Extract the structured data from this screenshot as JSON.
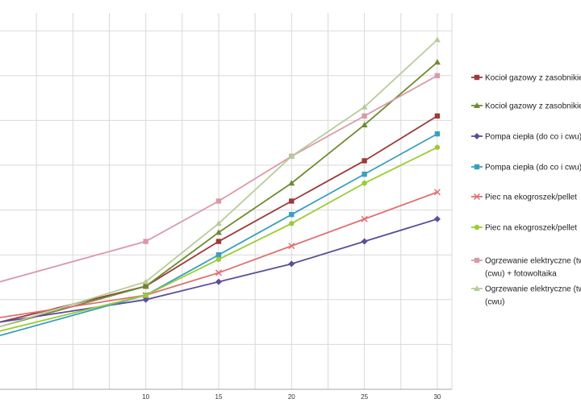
{
  "chart_data": {
    "type": "line",
    "title": "",
    "xlabel": "",
    "ylabel": "",
    "xlim": [
      0,
      31
    ],
    "ylim": [
      0,
      8.4
    ],
    "grid": true,
    "legend_position": "right",
    "x_ticks": [
      10,
      15,
      20,
      25,
      30
    ],
    "series": [
      {
        "name": "Kocioł gazowy z zasobnikiem",
        "legend_lines": [
          "Kocioł gazowy z zasobnikie"
        ],
        "color": "#9c3b3b",
        "marker": "square",
        "x": [
          0,
          10,
          15,
          20,
          25,
          30
        ],
        "y": [
          1.5,
          2.3,
          3.3,
          4.2,
          5.1,
          6.1
        ]
      },
      {
        "name": "Kocioł gazowy z zasobnikiem",
        "legend_lines": [
          "Kocioł gazowy z zasobnikie"
        ],
        "color": "#6e8b2f",
        "marker": "triangle",
        "x": [
          0,
          10,
          15,
          20,
          25,
          30
        ],
        "y": [
          1.4,
          2.3,
          3.5,
          4.6,
          5.9,
          7.3
        ]
      },
      {
        "name": "Pompa ciepła (do co i cwu)",
        "legend_lines": [
          "Pompa ciepła (do co i cwu)"
        ],
        "color": "#5a4f9a",
        "marker": "diamond",
        "x": [
          0,
          10,
          15,
          20,
          25,
          30
        ],
        "y": [
          1.5,
          2.0,
          2.4,
          2.8,
          3.3,
          3.8
        ]
      },
      {
        "name": "Pompa ciepła (do co i cwu)",
        "legend_lines": [
          "Pompa ciepła (do co i cwu)"
        ],
        "color": "#3a9fbf",
        "marker": "square",
        "x": [
          0,
          10,
          15,
          20,
          25,
          30
        ],
        "y": [
          1.2,
          2.1,
          3.0,
          3.9,
          4.8,
          5.7
        ]
      },
      {
        "name": "Piec na ekogroszek/pellet",
        "legend_lines": [
          "Piec na ekogroszek/pellet"
        ],
        "color": "#e06f73",
        "marker": "x",
        "x": [
          0,
          10,
          15,
          20,
          25,
          30
        ],
        "y": [
          1.6,
          2.1,
          2.6,
          3.2,
          3.8,
          4.4
        ]
      },
      {
        "name": "Piec na ekogroszek/pellet",
        "legend_lines": [
          "Piec na ekogroszek/pellet"
        ],
        "color": "#9acd32",
        "marker": "circle",
        "x": [
          0,
          10,
          15,
          20,
          25,
          30
        ],
        "y": [
          1.3,
          2.1,
          2.9,
          3.7,
          4.6,
          5.4
        ]
      },
      {
        "name": "Ogrzewanie elektryczne (cwu) + fotowoltaika",
        "legend_lines": [
          "Ogrzewanie elektryczne (tw",
          "(cwu) + fotowoltaika"
        ],
        "color": "#d99aa8",
        "marker": "square",
        "x": [
          0,
          10,
          15,
          20,
          25,
          30
        ],
        "y": [
          2.4,
          3.3,
          4.2,
          5.2,
          6.1,
          7.0
        ]
      },
      {
        "name": "Ogrzewanie elektryczne (cwu)",
        "legend_lines": [
          "Ogrzewanie elektryczne (tw",
          "(cwu)"
        ],
        "color": "#b8cc99",
        "marker": "triangle",
        "x": [
          0,
          10,
          15,
          20,
          25,
          30
        ],
        "y": [
          1.4,
          2.4,
          3.7,
          5.2,
          6.3,
          7.8
        ]
      }
    ]
  }
}
